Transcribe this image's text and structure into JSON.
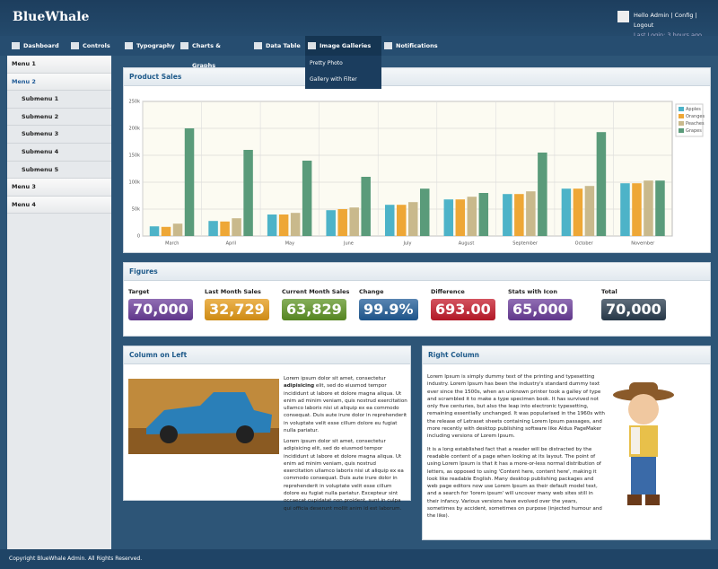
{
  "header": {
    "brand": "BlueWhale",
    "greeting": "Hello Admin",
    "links": [
      "Config",
      "Logout"
    ],
    "last_login": "Last Login: 3 hours ago"
  },
  "nav": {
    "items": [
      "Dashboard",
      "Controls",
      "Typography",
      "Charts & Graphs",
      "Data Table",
      "Image Galleries",
      "Notifications"
    ],
    "dropdown": [
      "Pretty Photo",
      "Gallery with Filter"
    ]
  },
  "sidebar": {
    "items": [
      "Menu 1",
      "Menu 2",
      "Submenu 1",
      "Submenu 2",
      "Submenu 3",
      "Submenu 4",
      "Submenu 5",
      "Menu 3",
      "Menu 4"
    ]
  },
  "product_sales": {
    "title": "Product Sales",
    "chart_data": {
      "type": "bar",
      "categories": [
        "March",
        "April",
        "May",
        "June",
        "July",
        "August",
        "September",
        "October",
        "November"
      ],
      "series": [
        {
          "name": "Apples",
          "color": "#4db3c8",
          "values": [
            18,
            28,
            40,
            48,
            58,
            68,
            78,
            88,
            98
          ]
        },
        {
          "name": "Oranges",
          "color": "#eea736",
          "values": [
            17,
            27,
            40,
            50,
            58,
            68,
            78,
            88,
            98
          ]
        },
        {
          "name": "Peaches",
          "color": "#c9b98c",
          "values": [
            23,
            33,
            43,
            53,
            63,
            73,
            83,
            93,
            103
          ]
        },
        {
          "name": "Grapes",
          "color": "#5a9b7a",
          "values": [
            200,
            160,
            140,
            110,
            88,
            80,
            155,
            193,
            103
          ]
        }
      ],
      "ylim": [
        0,
        250
      ],
      "yticks": [
        0,
        {
          "value": 50,
          "label": "50k"
        },
        {
          "value": 100,
          "label": "100k"
        },
        {
          "value": 150,
          "label": "150k"
        },
        {
          "value": 200,
          "label": "200k"
        },
        {
          "value": 250,
          "label": "250k"
        }
      ],
      "grid": true
    }
  },
  "figures": {
    "title": "Figures",
    "items": [
      {
        "label": "Target",
        "value": "70,000",
        "color": "#6b3d9a"
      },
      {
        "label": "Last Month Sales",
        "value": "32,729",
        "color": "#e59a16"
      },
      {
        "label": "Current Month Sales",
        "value": "63,829",
        "color": "#5e9424"
      },
      {
        "label": "Change",
        "value": "99.9%",
        "color": "#215d98"
      },
      {
        "label": "Difference",
        "value": "693.00",
        "color": "#c51a2a"
      },
      {
        "label": "Stats with Icon",
        "value": "65,000",
        "color": "#6b3d9a"
      },
      {
        "label": "Total",
        "value": "70,000",
        "color": "#2a3d4f"
      }
    ]
  },
  "left_column": {
    "title": "Column on Left",
    "p1_start": "Lorem ipsum dolor sit amet, consectetur ",
    "p1_bold": "adipisicing",
    "p1_end": " elit, sed do eiusmod tempor incididunt ut labore et dolore magna aliqua. Ut enim ad minim veniam, quis nostrud exercitation ullamco laboris nisi ut aliquip ex ea commodo consequat. Duis aute irure dolor in reprehenderit in voluptate velit esse cillum dolore eu fugiat nulla pariatur.",
    "p2": "Lorem ipsum dolor sit amet, consectetur adipisicing elit, sed do eiusmod tempor incididunt ut labore et dolore magna aliqua. Ut enim ad minim veniam, quis nostrud exercitation ullamco laboris nisi ut aliquip ex ea commodo consequat. Duis aute irure dolor in reprehenderit in voluptate velit esse cillum dolore eu fugiat nulla pariatur. Excepteur sint occaecat cupidatat non proident, sunt in culpa qui officia deserunt mollit anim id est laborum."
  },
  "right_column": {
    "title": "Right Column",
    "p1": "Lorem Ipsum is simply dummy text of the printing and typesetting industry. Lorem Ipsum has been the industry's standard dummy text ever since the 1500s, when an unknown printer took a galley of type and scrambled it to make a type specimen book. It has survived not only five centuries, but also the leap into electronic typesetting, remaining essentially unchanged. It was popularised in the 1960s with the release of Letraset sheets containing Lorem Ipsum passages, and more recently with desktop publishing software like Aldus PageMaker including versions of Lorem Ipsum.",
    "p2": "It is a long established fact that a reader will be distracted by the readable content of a page when looking at its layout. The point of using Lorem Ipsum is that it has a more-or-less normal distribution of letters, as opposed to using 'Content here, content here', making it look like readable English. Many desktop publishing packages and web page editors now use Lorem Ipsum as their default model text, and a search for 'lorem ipsum' will uncover many web sites still in their infancy. Various versions have evolved over the years, sometimes by accident, sometimes on purpose (injected humour and the like)."
  },
  "footer": "Copyright BlueWhale Admin. All Rights Reserved."
}
